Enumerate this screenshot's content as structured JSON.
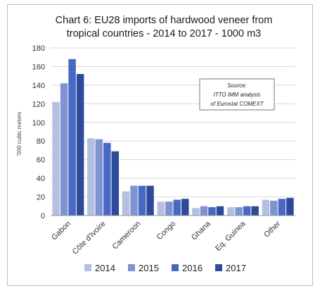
{
  "chart_data": {
    "type": "bar",
    "title_line1": "Chart 6: EU28 imports of hardwood veneer from",
    "title_line2": "tropical countries - 2014 to 2017 - 1000 m3",
    "ylabel": "'000 cubic meters",
    "ylim": [
      0,
      180
    ],
    "yticks": [
      0,
      20,
      40,
      60,
      80,
      100,
      120,
      140,
      160,
      180
    ],
    "grid": true,
    "legend_position": "bottom",
    "source_lines": [
      "Source:",
      "ITTO IMM analysis",
      "of Eurostat COMEXT"
    ],
    "categories": [
      "Gabon",
      "Côte d'Ivoire",
      "Cameroon",
      "Congo",
      "Ghana",
      "Eq. Guinea",
      "Other"
    ],
    "series": [
      {
        "name": "2014",
        "color": "#b4c0e2",
        "values": [
          122,
          83,
          26,
          15,
          8,
          9,
          17
        ]
      },
      {
        "name": "2015",
        "color": "#7f93d1",
        "values": [
          142,
          82,
          32,
          15,
          10,
          9,
          16
        ]
      },
      {
        "name": "2016",
        "color": "#4769c4",
        "values": [
          168,
          78,
          32,
          17,
          9,
          10,
          18
        ]
      },
      {
        "name": "2017",
        "color": "#2e4a9b",
        "values": [
          152,
          69,
          32,
          18,
          10,
          10,
          19
        ]
      }
    ]
  }
}
